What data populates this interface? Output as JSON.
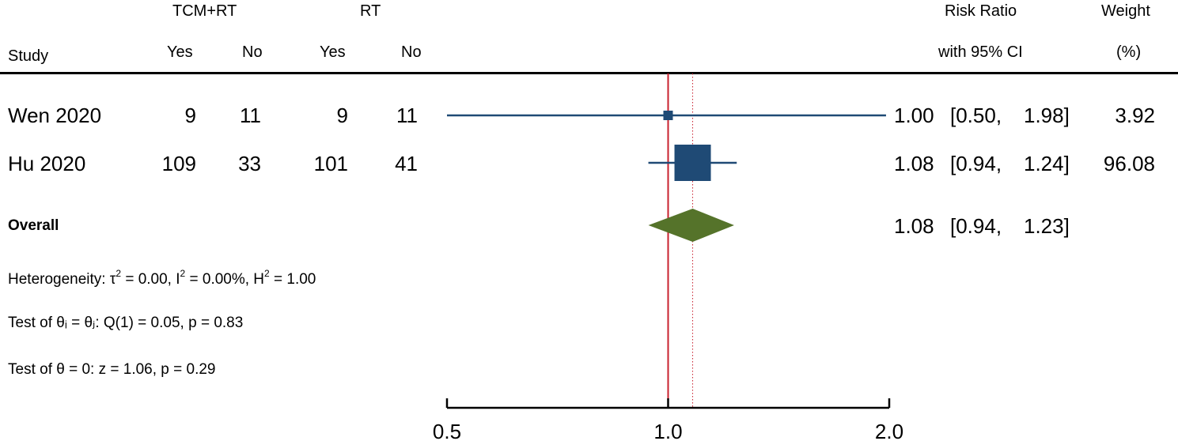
{
  "header": {
    "group1": "TCM+RT",
    "group2": "RT",
    "study": "Study",
    "yes1": "Yes",
    "no1": "No",
    "yes2": "Yes",
    "no2": "No",
    "rr_line1": "Risk Ratio",
    "rr_line2": "with 95% CI",
    "weight_line1": "Weight",
    "weight_line2": "(%)"
  },
  "rows": [
    {
      "study": "Wen 2020",
      "yes1": "9",
      "no1": "11",
      "yes2": "9",
      "no2": "11",
      "rr": "1.00",
      "ci_lo": "[0.50,",
      "ci_hi": "1.98]",
      "weight": "3.92"
    },
    {
      "study": "Hu 2020",
      "yes1": "109",
      "no1": "33",
      "yes2": "101",
      "no2": "41",
      "rr": "1.08",
      "ci_lo": "[0.94,",
      "ci_hi": "1.24]",
      "weight": "96.08"
    }
  ],
  "overall": {
    "label": "Overall",
    "rr": "1.08",
    "ci_lo": "[0.94,",
    "ci_hi": "1.23]"
  },
  "stats": {
    "het_prefix": "Heterogeneity: τ",
    "het_tau_sup": "2",
    "het_mid1": " = 0.00, I",
    "het_i_sup": "2",
    "het_mid2": " = 0.00%, H",
    "het_h_sup": "2",
    "het_end": " = 1.00",
    "test_q": "Test of θᵢ = θⱼ: Q(1) = 0.05, p = 0.83",
    "test_z": "Test of θ = 0: z = 1.06, p = 0.29"
  },
  "colors": {
    "study_marker": "#1f4a75",
    "overall_diamond": "#55732a",
    "null_line": "#c8202e",
    "overall_line": "#c8202e"
  },
  "chart_data": {
    "type": "forest",
    "scale": "log",
    "xlim": [
      0.5,
      2.0
    ],
    "ticks": [
      0.5,
      1.0,
      2.0
    ],
    "tick_labels": [
      "0.5",
      "1.0",
      "2.0"
    ],
    "null_value": 1.0,
    "studies": [
      {
        "name": "Wen 2020",
        "rr": 1.0,
        "lo": 0.5,
        "hi": 1.98,
        "weight": 3.92
      },
      {
        "name": "Hu 2020",
        "rr": 1.08,
        "lo": 0.94,
        "hi": 1.24,
        "weight": 96.08
      }
    ],
    "overall": {
      "rr": 1.08,
      "lo": 0.94,
      "hi": 1.23
    }
  }
}
